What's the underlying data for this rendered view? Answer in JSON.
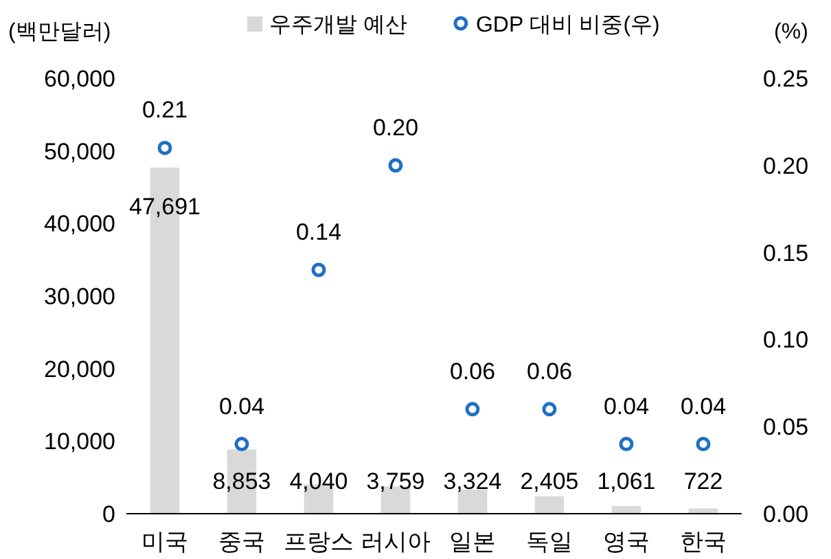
{
  "chart_data": {
    "type": "bar",
    "ylabel": "(백만달러)",
    "y2label": "(%)",
    "legend": "top",
    "grid": false,
    "categories": [
      "미국",
      "중국",
      "프랑스",
      "러시아",
      "일본",
      "독일",
      "영국",
      "한국"
    ],
    "series": [
      {
        "name": "우주개발 예산",
        "color": "#d9d9d9",
        "values": [
          47691,
          8853,
          4040,
          3759,
          3324,
          2405,
          1061,
          722
        ],
        "value_labels": [
          "47,691",
          "8,853",
          "4,040",
          "3,759",
          "3,324",
          "2,405",
          "1,061",
          "722"
        ]
      },
      {
        "name": "GDP 대비 비중(우)",
        "type": "scatter",
        "axis": "y2",
        "marker": "circle",
        "color": "#1f6fc5",
        "values": [
          0.21,
          0.04,
          0.14,
          0.2,
          0.06,
          0.06,
          0.04,
          0.04
        ],
        "value_labels": [
          "0.21",
          "0.04",
          "0.14",
          "0.20",
          "0.06",
          "0.06",
          "0.04",
          "0.04"
        ]
      }
    ],
    "ylim": [
      0,
      60000
    ],
    "yticks": [
      {
        "value": 0,
        "label": "0"
      },
      {
        "value": 10000,
        "label": "10,000"
      },
      {
        "value": 20000,
        "label": "20,000"
      },
      {
        "value": 30000,
        "label": "30,000"
      },
      {
        "value": 40000,
        "label": "40,000"
      },
      {
        "value": 50000,
        "label": "50,000"
      },
      {
        "value": 60000,
        "label": "60,000"
      }
    ],
    "y2lim": [
      0,
      0.25
    ],
    "y2ticks": [
      {
        "value": 0,
        "label": "0.00"
      },
      {
        "value": 0.05,
        "label": "0.05"
      },
      {
        "value": 0.1,
        "label": "0.10"
      },
      {
        "value": 0.15,
        "label": "0.15"
      },
      {
        "value": 0.2,
        "label": "0.20"
      },
      {
        "value": 0.25,
        "label": "0.25"
      }
    ]
  }
}
